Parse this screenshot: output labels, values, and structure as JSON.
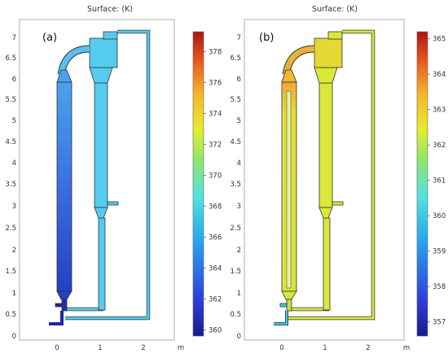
{
  "panels": [
    {
      "id": "a",
      "label": "(a)",
      "title": "Surface: (K)",
      "unit": "m",
      "y_ticks": [
        "0",
        "0.5",
        "1",
        "1.5",
        "2",
        "2.5",
        "3",
        "3.5",
        "4",
        "4.5",
        "5",
        "5.5",
        "6",
        "6.5",
        "7"
      ],
      "x_ticks": [
        "0",
        "1",
        "2"
      ],
      "colorbar_ticks": [
        "360",
        "362",
        "364",
        "366",
        "368",
        "370",
        "372",
        "374",
        "376",
        "378"
      ],
      "colorbar_range": [
        359.6,
        379.3
      ]
    },
    {
      "id": "b",
      "label": "(b)",
      "title": "Surface: (K)",
      "unit": "m",
      "y_ticks": [
        "0",
        "0.5",
        "1",
        "1.5",
        "2",
        "2.5",
        "3",
        "3.5",
        "4",
        "4.5",
        "5",
        "5.5",
        "6",
        "6.5",
        "7"
      ],
      "x_ticks": [
        "0",
        "1",
        "2"
      ],
      "colorbar_ticks": [
        "357",
        "358",
        "359",
        "360",
        "361",
        "362",
        "363",
        "364",
        "365"
      ],
      "colorbar_range": [
        356.6,
        365.2
      ]
    }
  ],
  "colors": {
    "panel_a_column": "#3f6ee0",
    "panel_a_column_dark": "#2743c8",
    "panel_a_body": "#55ccef",
    "panel_b_body": "#d9e83a",
    "panel_b_hot": "#f3b634"
  }
}
